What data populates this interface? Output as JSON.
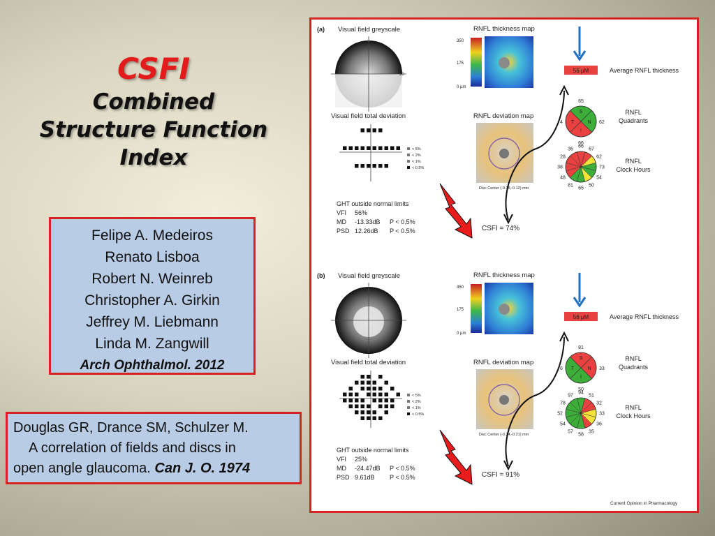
{
  "slide": {
    "title": "CSFI",
    "subtitle_line1": "Combined",
    "subtitle_line2": "Structure Function",
    "subtitle_line3": "Index"
  },
  "authors": {
    "names": [
      "Felipe A. Medeiros",
      "Renato Lisboa",
      "Robert N. Weinreb",
      "Christopher A. Girkin",
      "Jeffrey M. Liebmann",
      "Linda M. Zangwill"
    ],
    "reference": "Arch Ophthalmol. 2012"
  },
  "douglas": {
    "line1": "Douglas GR, Drance SM, Schulzer M.",
    "line2": "A correlation of fields and discs in",
    "line3": "open angle glaucoma.",
    "journal": "Can J. O. 1974"
  },
  "figure": {
    "credit": "Current Opinion in Pharmacology",
    "labels": {
      "greyscale": "Visual field greyscale",
      "thickness_map": "RNFL thickness map",
      "total_deviation": "Visual field total deviation",
      "deviation_map": "RNFL deviation map",
      "avg_thickness": "Average RNFL thickness",
      "quadrants_l1": "RNFL",
      "quadrants_l2": "Quadrants",
      "clock_l1": "RNFL",
      "clock_l2": "Clock Hours",
      "scale_top": "350",
      "scale_mid": "175",
      "scale_bot": "0 µm",
      "legend": [
        "< 5%",
        "< 2%",
        "< 1%",
        "< 0.5%"
      ],
      "quad_letters": [
        "S",
        "N",
        "I",
        "T"
      ]
    },
    "panels": [
      {
        "tag": "(a)",
        "avg_value": "56 µM",
        "vf_tick": "30",
        "disc_center": "Disc Center (-0.18,-0.12) mm",
        "quadrants": {
          "top": "65",
          "right": "62",
          "bottom": "66",
          "left": "4"
        },
        "clock": [
          "66",
          "67",
          "62",
          "73",
          "54",
          "50",
          "65",
          "81",
          "48",
          "38",
          "28",
          "36"
        ],
        "ght": "GHT outside normal limits",
        "vfi_label": "VFI",
        "vfi": "56%",
        "md_label": "MD",
        "md": "-13.33dB",
        "md_p": "P < 0.5%",
        "psd_label": "PSD",
        "psd": "12.26dB",
        "psd_p": "P < 0.5%",
        "csfi": "CSFI = 74%"
      },
      {
        "tag": "(b)",
        "avg_value": "56 µM",
        "disc_center": "Disc Center (-0.24,-0.21) mm",
        "quadrants": {
          "top": "81",
          "right": "33",
          "bottom": "50",
          "left": "6"
        },
        "clock": [
          "94",
          "51",
          "32",
          "33",
          "36",
          "35",
          "58",
          "57",
          "54",
          "52",
          "78",
          "97"
        ],
        "ght": "GHT outside normal limits",
        "vfi_label": "VFI",
        "vfi": "25%",
        "md_label": "MD",
        "md": "-24.47dB",
        "md_p": "P < 0.5%",
        "psd_label": "PSD",
        "psd": "9.61dB",
        "psd_p": "P < 0.5%",
        "csfi": "CSFI = 91%"
      }
    ],
    "colors": {
      "red": "#e8413f",
      "green": "#3dae3a",
      "yellow": "#f2e23a",
      "arrow_blue": "#1f6fc4",
      "bolt_red": "#e81c1c",
      "border_red": "#d72222"
    }
  }
}
